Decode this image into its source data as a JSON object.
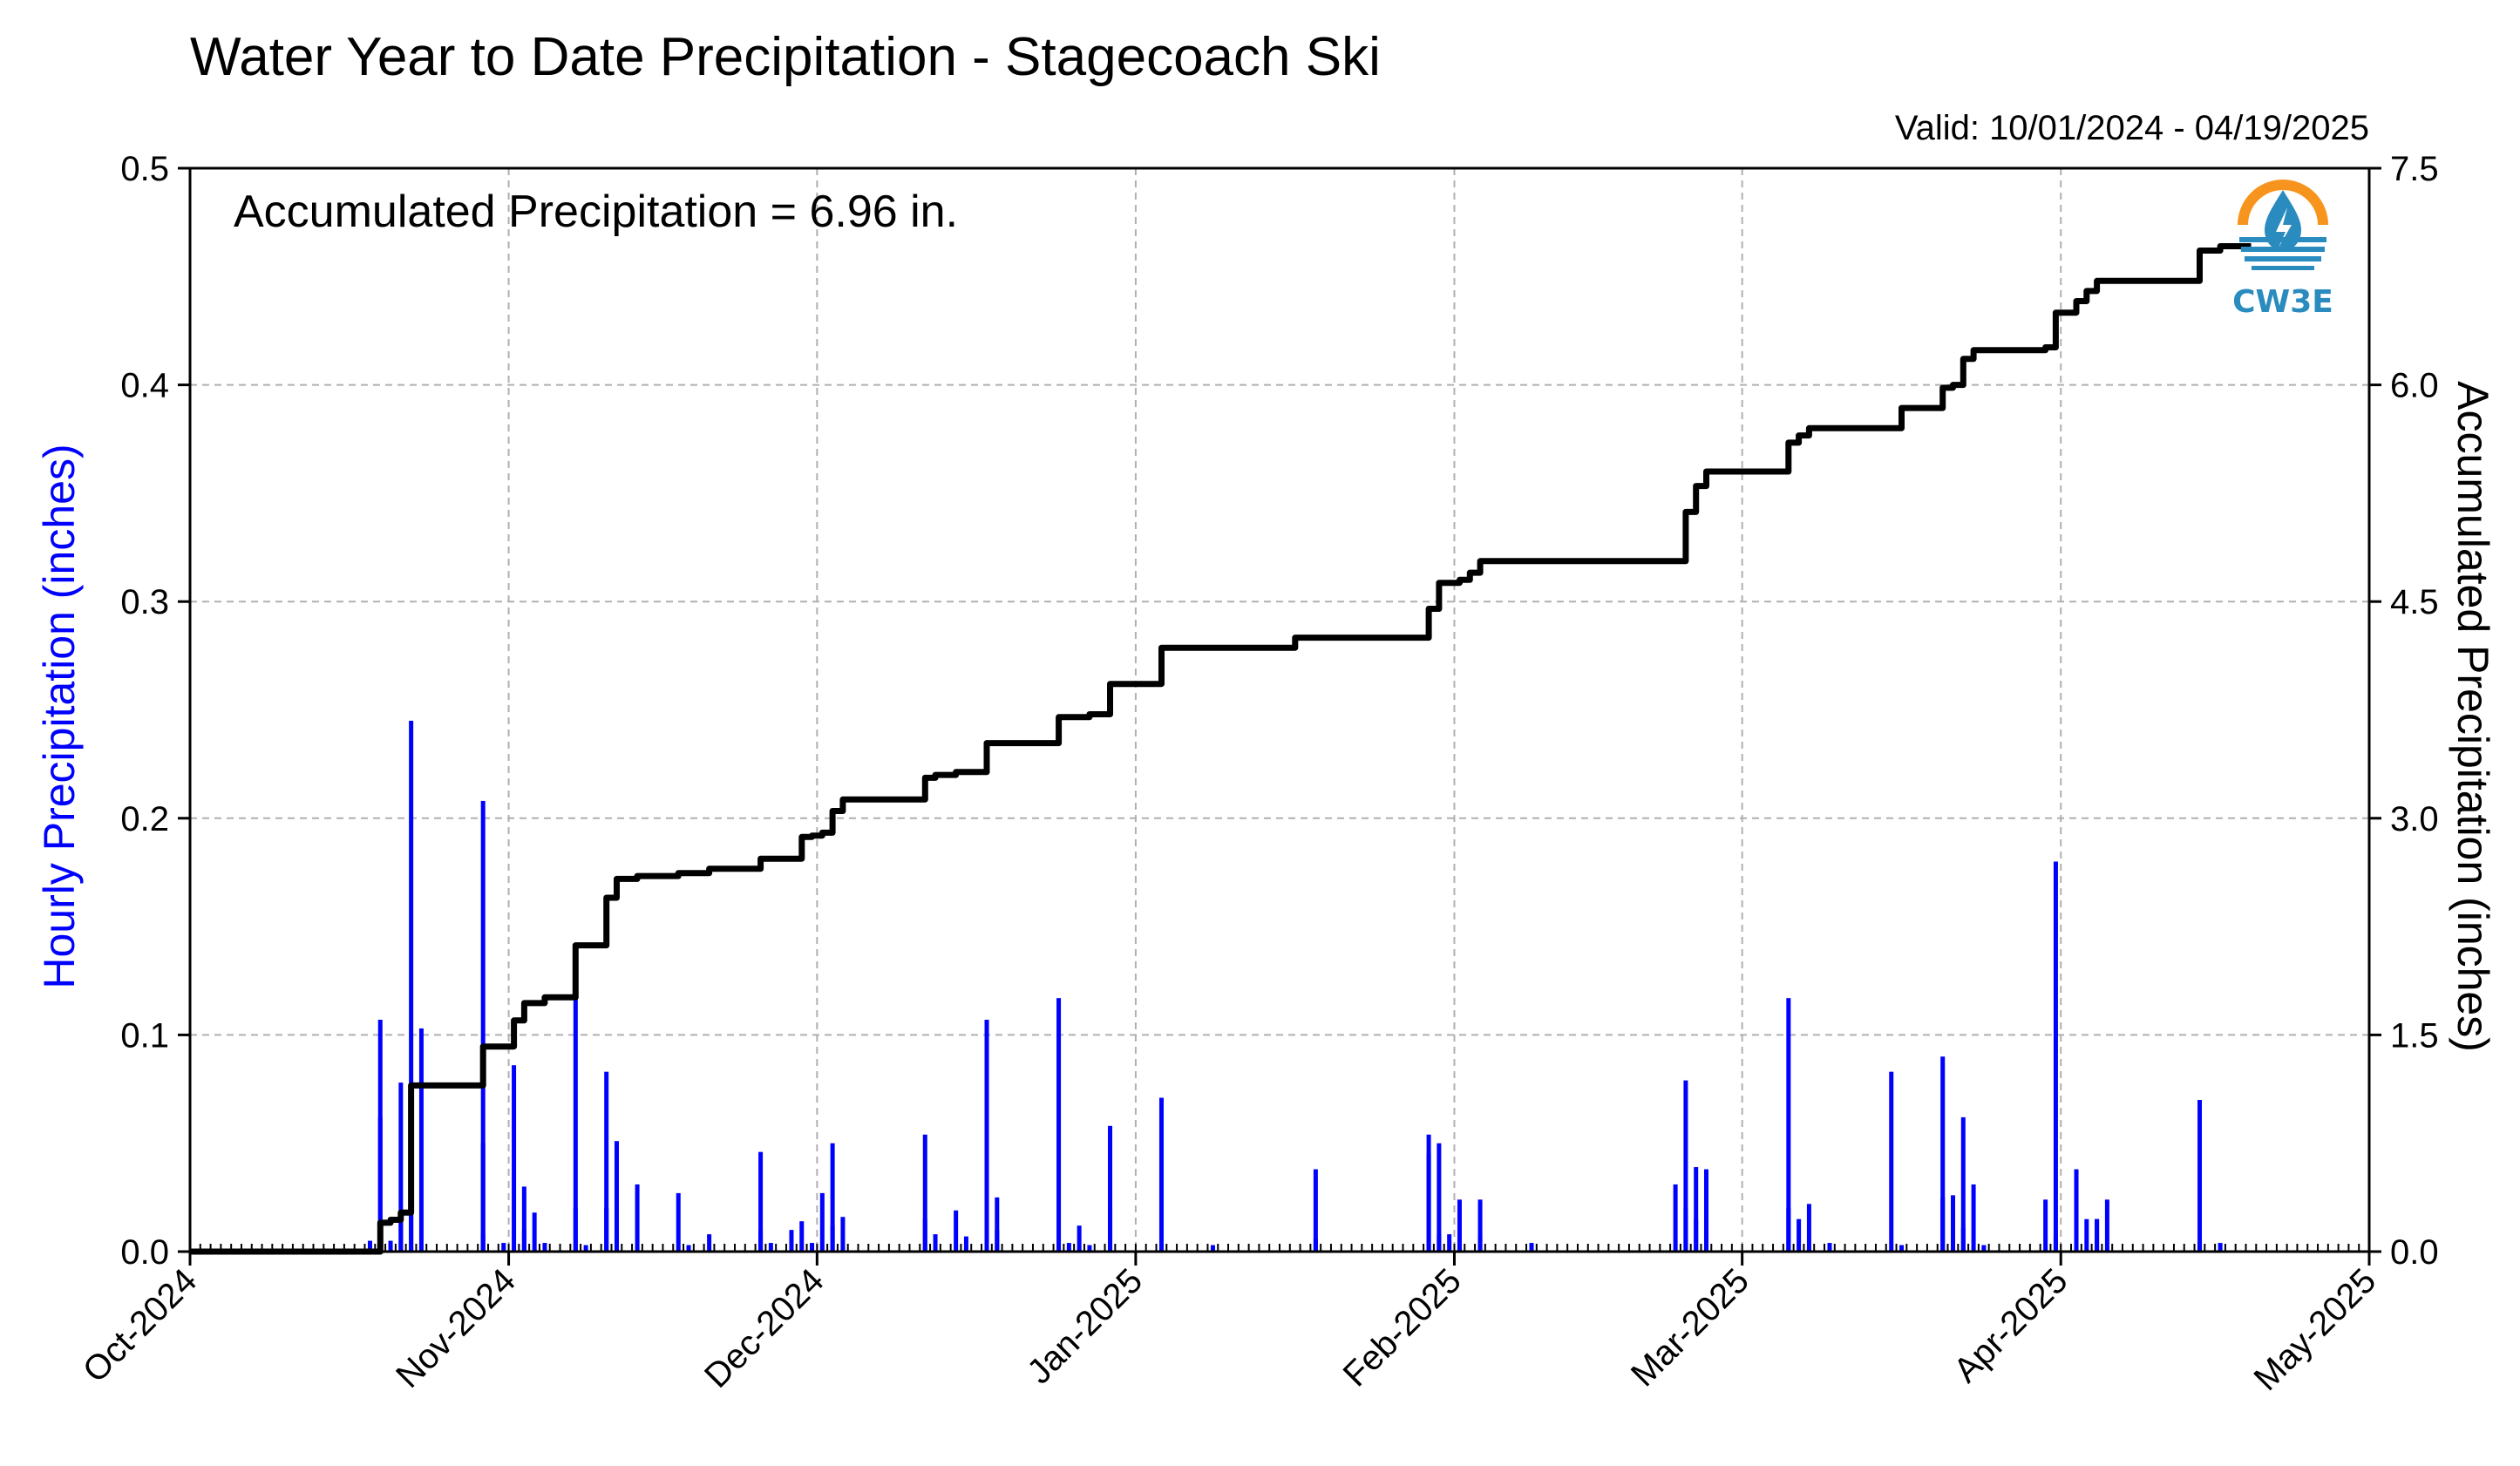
{
  "title": "Water Year to Date Precipitation - Stagecoach Ski",
  "valid_text": "Valid: 10/01/2024 - 04/19/2025",
  "annotation": "Accumulated Precipitation = 6.96 in.",
  "logo": {
    "icon": "cw3e-logo-icon",
    "text": "CW3E",
    "colors": {
      "sun": "#f7941d",
      "water": "#2a8bbf"
    }
  },
  "chart_data": {
    "type": "bar+line",
    "x_unit": "date",
    "xlim": [
      "2024-10-01",
      "2025-05-01"
    ],
    "x_ticks": [
      "2024-10-01",
      "2024-11-01",
      "2024-12-01",
      "2025-01-01",
      "2025-02-01",
      "2025-03-01",
      "2025-04-01",
      "2025-05-01"
    ],
    "x_tick_labels": [
      "Oct-2024",
      "Nov-2024",
      "Dec-2024",
      "Jan-2025",
      "Feb-2025",
      "Mar-2025",
      "Apr-2025",
      "May-2025"
    ],
    "grid": true,
    "left_axis": {
      "label": "Hourly Precipitation (inches)",
      "ylim": [
        0,
        0.5
      ],
      "ticks": [
        "0.0",
        "0.1",
        "0.2",
        "0.3",
        "0.4",
        "0.5"
      ],
      "color": "#0000ff"
    },
    "right_axis": {
      "label": "Accumulated Precipitation (inches)",
      "ylim": [
        0,
        7.5
      ],
      "ticks": [
        "0.0",
        "1.5",
        "3.0",
        "4.5",
        "6.0",
        "7.5"
      ],
      "color": "#000000"
    },
    "series": [
      {
        "type": "bar",
        "axis": "left",
        "color": "#0000ff",
        "x": [
          "2024-10-18",
          "2024-10-19",
          "2024-10-19",
          "2024-10-20",
          "2024-10-21",
          "2024-10-21",
          "2024-10-22",
          "2024-10-22",
          "2024-10-23",
          "2024-10-29",
          "2024-10-29",
          "2024-10-29",
          "2024-10-31",
          "2024-11-01",
          "2024-11-02",
          "2024-11-02",
          "2024-11-03",
          "2024-11-04",
          "2024-11-07",
          "2024-11-07",
          "2024-11-08",
          "2024-11-10",
          "2024-11-10",
          "2024-11-11",
          "2024-11-11",
          "2024-11-13",
          "2024-11-17",
          "2024-11-18",
          "2024-11-20",
          "2024-11-25",
          "2024-11-25",
          "2024-11-26",
          "2024-11-28",
          "2024-11-29",
          "2024-11-30",
          "2024-12-01",
          "2024-12-02",
          "2024-12-02",
          "2024-12-03",
          "2024-12-11",
          "2024-12-11",
          "2024-12-12",
          "2024-12-14",
          "2024-12-15",
          "2024-12-17",
          "2024-12-18",
          "2024-12-18",
          "2024-12-24",
          "2024-12-25",
          "2024-12-26",
          "2024-12-27",
          "2024-12-29",
          "2024-12-29",
          "2025-01-03",
          "2025-01-03",
          "2025-01-08",
          "2025-01-18",
          "2025-01-18",
          "2025-01-29",
          "2025-01-29",
          "2025-01-30",
          "2025-01-30",
          "2025-01-31",
          "2025-02-01",
          "2025-02-03",
          "2025-02-03",
          "2025-02-08",
          "2025-02-22",
          "2025-02-23",
          "2025-02-23",
          "2025-02-24",
          "2025-02-24",
          "2025-02-25",
          "2025-02-25",
          "2025-03-05",
          "2025-03-05",
          "2025-03-06",
          "2025-03-07",
          "2025-03-09",
          "2025-03-15",
          "2025-03-16",
          "2025-03-20",
          "2025-03-20",
          "2025-03-21",
          "2025-03-22",
          "2025-03-22",
          "2025-03-23",
          "2025-03-24",
          "2025-03-30",
          "2025-03-31",
          "2025-03-31",
          "2025-04-02",
          "2025-04-03",
          "2025-04-04",
          "2025-04-04",
          "2025-04-05",
          "2025-04-14",
          "2025-04-14",
          "2025-04-16"
        ],
        "values": [
          0.005,
          0.107,
          0.062,
          0.005,
          0.078,
          0.016,
          0.245,
          0.05,
          0.103,
          0.008,
          0.208,
          0.05,
          0.004,
          0.086,
          0.03,
          0.01,
          0.018,
          0.004,
          0.12,
          0.02,
          0.003,
          0.083,
          0.02,
          0.051,
          0.01,
          0.031,
          0.027,
          0.003,
          0.008,
          0.046,
          0.01,
          0.004,
          0.01,
          0.014,
          0.004,
          0.027,
          0.05,
          0.012,
          0.016,
          0.054,
          0.015,
          0.008,
          0.019,
          0.007,
          0.107,
          0.025,
          0.01,
          0.117,
          0.004,
          0.012,
          0.003,
          0.058,
          0.02,
          0.071,
          0.02,
          0.003,
          0.038,
          0.006,
          0.054,
          0.045,
          0.05,
          0.008,
          0.008,
          0.024,
          0.024,
          0.008,
          0.004,
          0.031,
          0.079,
          0.02,
          0.039,
          0.015,
          0.038,
          0.01,
          0.117,
          0.02,
          0.015,
          0.022,
          0.004,
          0.083,
          0.003,
          0.09,
          0.025,
          0.026,
          0.062,
          0.011,
          0.031,
          0.003,
          0.024,
          0.18,
          0.008,
          0.038,
          0.015,
          0.015,
          0.015,
          0.024,
          0.07,
          0.005,
          0.004
        ]
      },
      {
        "type": "line",
        "axis": "right",
        "color": "#000000",
        "name": "Accumulated Precipitation",
        "x": [
          "2024-10-01",
          "2024-10-18",
          "2024-10-19",
          "2024-10-19",
          "2024-10-20",
          "2024-10-21",
          "2024-10-21",
          "2024-10-22",
          "2024-10-22",
          "2024-10-23",
          "2024-10-29",
          "2024-10-29",
          "2024-10-31",
          "2024-11-01",
          "2024-11-02",
          "2024-11-02",
          "2024-11-04",
          "2024-11-07",
          "2024-11-07",
          "2024-11-10",
          "2024-11-10",
          "2024-11-11",
          "2024-11-11",
          "2024-11-13",
          "2024-11-17",
          "2024-11-17",
          "2024-11-20",
          "2024-11-20",
          "2024-11-25",
          "2024-11-25",
          "2024-11-28",
          "2024-11-29",
          "2024-11-30",
          "2024-12-01",
          "2024-12-02",
          "2024-12-02",
          "2024-12-03",
          "2024-12-11",
          "2024-12-11",
          "2024-12-12",
          "2024-12-14",
          "2024-12-17",
          "2024-12-17",
          "2024-12-24",
          "2024-12-24",
          "2024-12-27",
          "2024-12-29",
          "2024-12-29",
          "2025-01-03",
          "2025-01-03",
          "2025-01-15",
          "2025-01-16",
          "2025-01-29",
          "2025-01-29",
          "2025-01-30",
          "2025-01-30",
          "2025-02-01",
          "2025-02-02",
          "2025-02-03",
          "2025-02-03",
          "2025-02-22",
          "2025-02-23",
          "2025-02-23",
          "2025-02-24",
          "2025-02-24",
          "2025-02-25",
          "2025-02-25",
          "2025-03-05",
          "2025-03-05",
          "2025-03-06",
          "2025-03-07",
          "2025-03-08",
          "2025-03-15",
          "2025-03-16",
          "2025-03-20",
          "2025-03-20",
          "2025-03-21",
          "2025-03-22",
          "2025-03-22",
          "2025-03-23",
          "2025-03-24",
          "2025-03-30",
          "2025-03-31",
          "2025-03-31",
          "2025-04-02",
          "2025-04-02",
          "2025-04-03",
          "2025-04-03",
          "2025-04-04",
          "2025-04-04",
          "2025-04-05",
          "2025-04-14",
          "2025-04-14",
          "2025-04-16",
          "2025-04-19"
        ],
        "values": [
          0.0,
          0.0,
          0.05,
          0.2,
          0.22,
          0.22,
          0.27,
          0.3,
          1.15,
          1.15,
          1.15,
          1.42,
          1.42,
          1.6,
          1.65,
          1.72,
          1.76,
          1.76,
          2.12,
          2.12,
          2.45,
          2.55,
          2.58,
          2.6,
          2.6,
          2.62,
          2.62,
          2.65,
          2.65,
          2.72,
          2.72,
          2.87,
          2.88,
          2.9,
          2.93,
          3.05,
          3.13,
          3.13,
          3.28,
          3.3,
          3.32,
          3.33,
          3.52,
          3.52,
          3.7,
          3.72,
          3.72,
          3.93,
          3.93,
          4.18,
          4.18,
          4.25,
          4.25,
          4.45,
          4.6,
          4.63,
          4.65,
          4.7,
          4.78,
          4.78,
          4.78,
          4.8,
          5.12,
          5.2,
          5.3,
          5.3,
          5.4,
          5.4,
          5.6,
          5.65,
          5.7,
          5.7,
          5.7,
          5.84,
          5.84,
          5.98,
          6.0,
          6.14,
          6.18,
          6.24,
          6.24,
          6.26,
          6.26,
          6.5,
          6.52,
          6.58,
          6.6,
          6.65,
          6.7,
          6.72,
          6.72,
          6.72,
          6.93,
          6.96,
          6.96
        ]
      }
    ]
  }
}
